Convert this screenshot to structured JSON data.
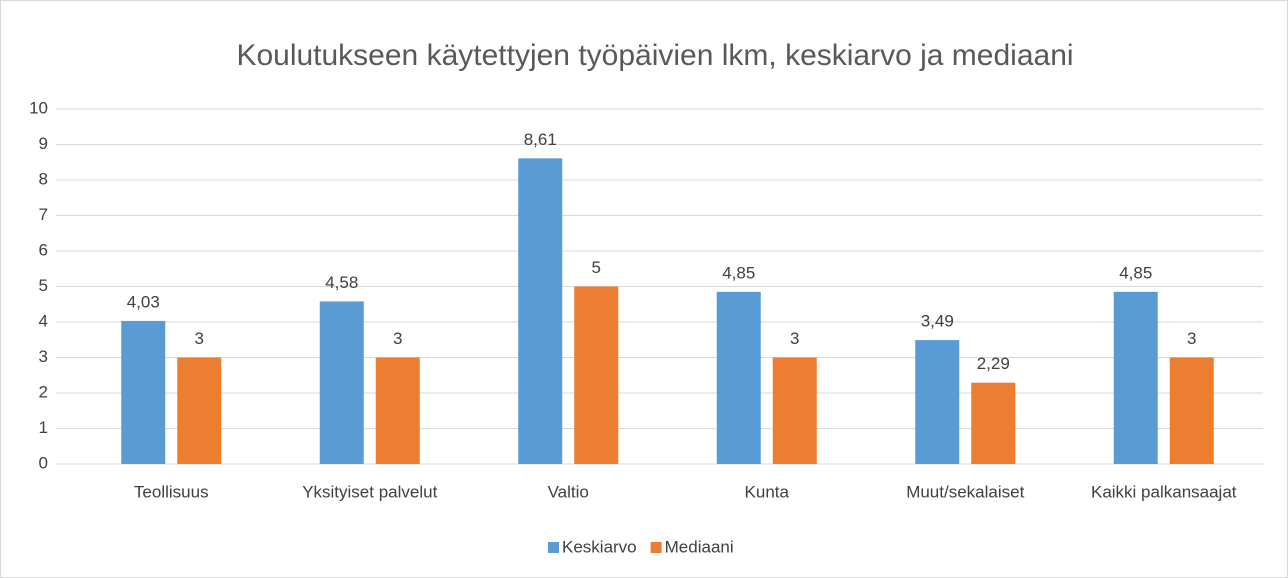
{
  "chart_data": {
    "type": "bar",
    "title": "Koulutukseen käytettyjen työpäivien lkm, keskiarvo ja mediaani",
    "categories": [
      "Teollisuus",
      "Yksityiset palvelut",
      "Valtio",
      "Kunta",
      "Muut/sekalaiset",
      "Kaikki palkansaajat"
    ],
    "series": [
      {
        "name": "Keskiarvo",
        "color": "#5b9bd5",
        "values": [
          4.03,
          4.58,
          8.61,
          4.85,
          3.49,
          4.85
        ],
        "value_labels": [
          "4,03",
          "4,58",
          "8,61",
          "4,85",
          "3,49",
          "4,85"
        ]
      },
      {
        "name": "Mediaani",
        "color": "#ed7d31",
        "values": [
          3,
          3,
          5,
          3,
          2.29,
          3
        ],
        "value_labels": [
          "3",
          "3",
          "5",
          "3",
          "2,29",
          "3"
        ]
      }
    ],
    "ylim": [
      0,
      10
    ],
    "yticks": [
      0,
      1,
      2,
      3,
      4,
      5,
      6,
      7,
      8,
      9,
      10
    ],
    "grid": true,
    "legend": "bottom"
  }
}
